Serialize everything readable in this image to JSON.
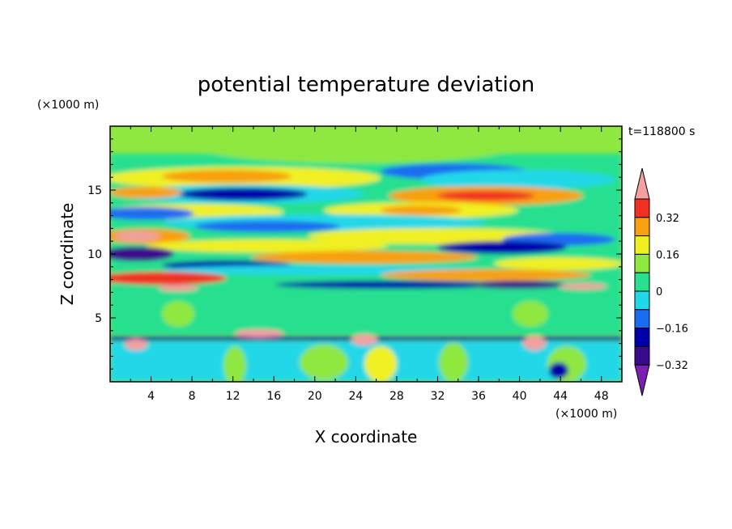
{
  "chart_data": {
    "type": "heatmap",
    "title": "potential temperature deviation",
    "xlabel": "X coordinate",
    "ylabel": "Z coordinate",
    "x_unit": "(×1000 m)",
    "y_unit": "(×1000 m)",
    "time_label": "t=118800 s",
    "xlim": [
      0,
      50
    ],
    "ylim": [
      0,
      20
    ],
    "x_ticks": [
      "4",
      "8",
      "12",
      "16",
      "20",
      "24",
      "28",
      "32",
      "36",
      "40",
      "44",
      "48"
    ],
    "y_ticks": [
      "5",
      "10",
      "15"
    ],
    "colorbar": {
      "labels": [
        "0.32",
        "0.16",
        "0",
        "−0.16",
        "−0.32"
      ],
      "colors": [
        "#7a1fb0",
        "#3a0a8c",
        "#0000a8",
        "#1a6cf0",
        "#20d8e8",
        "#28e090",
        "#8ee840",
        "#f0f020",
        "#f8a010",
        "#f03020",
        "#f2a0a0"
      ]
    }
  }
}
